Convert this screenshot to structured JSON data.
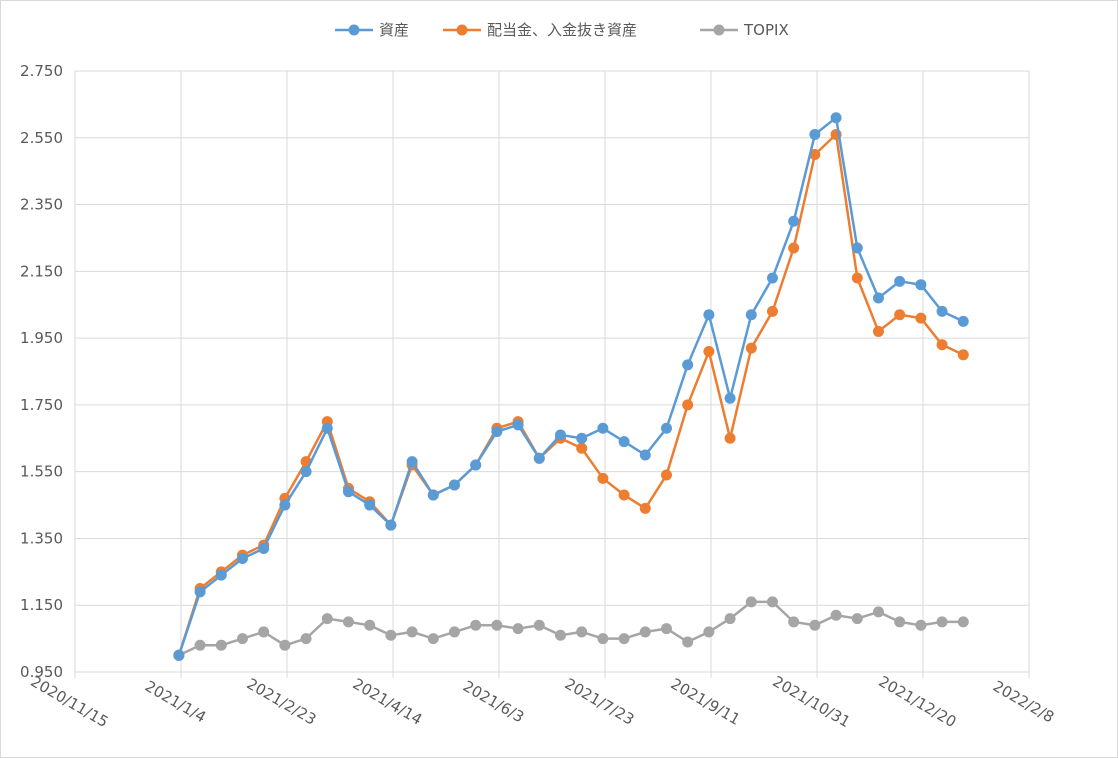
{
  "chart_data": {
    "type": "line",
    "title": "",
    "xlabel": "",
    "ylabel": "",
    "ylim": [
      0.95,
      2.75
    ],
    "yticks": [
      "0.950",
      "1.150",
      "1.350",
      "1.550",
      "1.750",
      "1.950",
      "2.150",
      "2.350",
      "2.550",
      "2.750"
    ],
    "xlim": [
      "2020/11/15",
      "2022/2/8"
    ],
    "xticks": [
      "2020/11/15",
      "2021/1/4",
      "2021/2/23",
      "2021/4/14",
      "2021/6/3",
      "2021/7/23",
      "2021/9/11",
      "2021/10/31",
      "2021/12/20",
      "2022/2/8"
    ],
    "grid": true,
    "legend": "top",
    "x": [
      "2021/1/3",
      "2021/1/13",
      "2021/1/23",
      "2021/2/2",
      "2021/2/12",
      "2021/2/22",
      "2021/3/4",
      "2021/3/14",
      "2021/3/24",
      "2021/4/3",
      "2021/4/13",
      "2021/4/23",
      "2021/5/3",
      "2021/5/13",
      "2021/5/23",
      "2021/6/2",
      "2021/6/12",
      "2021/6/22",
      "2021/7/2",
      "2021/7/12",
      "2021/7/22",
      "2021/8/1",
      "2021/8/11",
      "2021/8/21",
      "2021/8/31",
      "2021/9/10",
      "2021/9/20",
      "2021/9/30",
      "2021/10/10",
      "2021/10/20",
      "2021/10/30",
      "2021/11/9",
      "2021/11/19",
      "2021/11/29",
      "2021/12/9",
      "2021/12/19",
      "2021/12/29",
      "2022/1/8"
    ],
    "series": [
      {
        "name": "資産",
        "color": "#5b9bd5",
        "values": [
          1.0,
          1.19,
          1.24,
          1.29,
          1.32,
          1.45,
          1.55,
          1.68,
          1.49,
          1.45,
          1.39,
          1.58,
          1.48,
          1.51,
          1.57,
          1.67,
          1.69,
          1.59,
          1.66,
          1.65,
          1.68,
          1.64,
          1.6,
          1.68,
          1.87,
          2.02,
          1.77,
          2.02,
          2.13,
          2.3,
          2.56,
          2.61,
          2.22,
          2.07,
          2.12,
          2.11,
          2.03,
          2.0
        ]
      },
      {
        "name": "配当金、入金抜き資産",
        "color": "#ed7d31",
        "values": [
          1.0,
          1.2,
          1.25,
          1.3,
          1.33,
          1.47,
          1.58,
          1.7,
          1.5,
          1.46,
          1.39,
          1.57,
          1.48,
          1.51,
          1.57,
          1.68,
          1.7,
          1.59,
          1.65,
          1.62,
          1.53,
          1.48,
          1.44,
          1.54,
          1.75,
          1.91,
          1.65,
          1.92,
          2.03,
          2.22,
          2.5,
          2.56,
          2.13,
          1.97,
          2.02,
          2.01,
          1.93,
          1.9
        ]
      },
      {
        "name": "TOPIX",
        "color": "#a5a5a5",
        "values": [
          1.0,
          1.03,
          1.03,
          1.05,
          1.07,
          1.03,
          1.05,
          1.11,
          1.1,
          1.09,
          1.06,
          1.07,
          1.05,
          1.07,
          1.09,
          1.09,
          1.08,
          1.09,
          1.06,
          1.07,
          1.05,
          1.05,
          1.07,
          1.08,
          1.04,
          1.07,
          1.11,
          1.16,
          1.16,
          1.1,
          1.09,
          1.12,
          1.11,
          1.13,
          1.1,
          1.09,
          1.1,
          1.1
        ]
      }
    ]
  }
}
